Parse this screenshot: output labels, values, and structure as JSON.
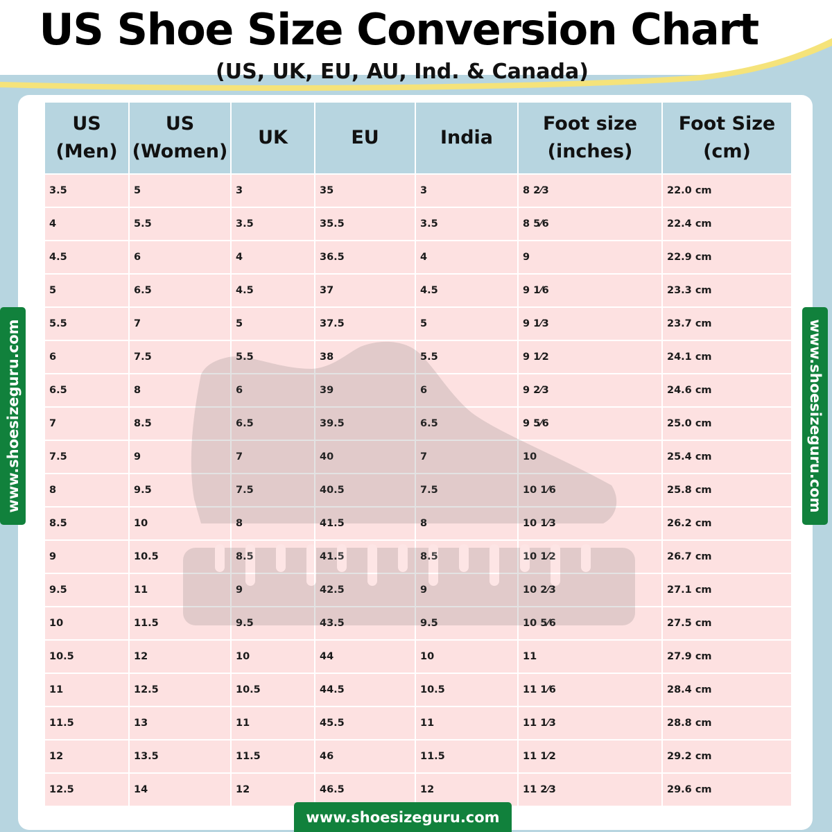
{
  "title": "US Shoe Size Conversion Chart",
  "subtitle": "(US, UK, EU, AU, Ind. & Canada)",
  "side_text": "www.shoesizeguru.com",
  "footer_text": "www.shoesizeguru.com",
  "colors": {
    "header_bg": "#b7d5e0",
    "cell_bg": "#fde1e1",
    "brand_green": "#11813c",
    "wave_yellow": "#f5e37a"
  },
  "watermark": "shoe-and-ruler-icon",
  "chart_data": {
    "type": "table",
    "columns": [
      [
        "US",
        "(Men)"
      ],
      [
        "US",
        "(Women)"
      ],
      [
        "UK"
      ],
      [
        "EU"
      ],
      [
        "India"
      ],
      [
        "Foot size",
        "(inches)"
      ],
      [
        "Foot Size",
        "(cm)"
      ]
    ],
    "rows": [
      [
        "3.5",
        "5",
        "3",
        "35",
        "3",
        "8 2⁄3",
        "22.0 cm"
      ],
      [
        "4",
        "5.5",
        "3.5",
        "35.5",
        "3.5",
        "8 5⁄6",
        "22.4 cm"
      ],
      [
        "4.5",
        "6",
        "4",
        "36.5",
        "4",
        "9",
        "22.9 cm"
      ],
      [
        "5",
        "6.5",
        "4.5",
        "37",
        "4.5",
        "9 1⁄6",
        "23.3 cm"
      ],
      [
        "5.5",
        "7",
        "5",
        "37.5",
        "5",
        "9 1⁄3",
        "23.7 cm"
      ],
      [
        "6",
        "7.5",
        "5.5",
        "38",
        "5.5",
        "9 1⁄2",
        "24.1 cm"
      ],
      [
        "6.5",
        "8",
        "6",
        "39",
        "6",
        "9 2⁄3",
        "24.6 cm"
      ],
      [
        "7",
        "8.5",
        "6.5",
        "39.5",
        "6.5",
        "9 5⁄6",
        "25.0 cm"
      ],
      [
        "7.5",
        "9",
        "7",
        "40",
        "7",
        "10",
        "25.4 cm"
      ],
      [
        "8",
        "9.5",
        "7.5",
        "40.5",
        "7.5",
        "10 1⁄6",
        "25.8 cm"
      ],
      [
        "8.5",
        "10",
        "8",
        "41.5",
        "8",
        "10 1⁄3",
        "26.2 cm"
      ],
      [
        "9",
        "10.5",
        "8.5",
        "41.5",
        "8.5",
        "10 1⁄2",
        "26.7 cm"
      ],
      [
        "9.5",
        "11",
        "9",
        "42.5",
        "9",
        "10 2⁄3",
        "27.1 cm"
      ],
      [
        "10",
        "11.5",
        "9.5",
        "43.5",
        "9.5",
        "10 5⁄6",
        "27.5 cm"
      ],
      [
        "10.5",
        "12",
        "10",
        "44",
        "10",
        "11",
        "27.9 cm"
      ],
      [
        "11",
        "12.5",
        "10.5",
        "44.5",
        "10.5",
        "11 1⁄6",
        "28.4 cm"
      ],
      [
        "11.5",
        "13",
        "11",
        "45.5",
        "11",
        "11 1⁄3",
        "28.8 cm"
      ],
      [
        "12",
        "13.5",
        "11.5",
        "46",
        "11.5",
        "11 1⁄2",
        "29.2 cm"
      ],
      [
        "12.5",
        "14",
        "12",
        "46.5",
        "12",
        "11 2⁄3",
        "29.6 cm"
      ]
    ]
  }
}
